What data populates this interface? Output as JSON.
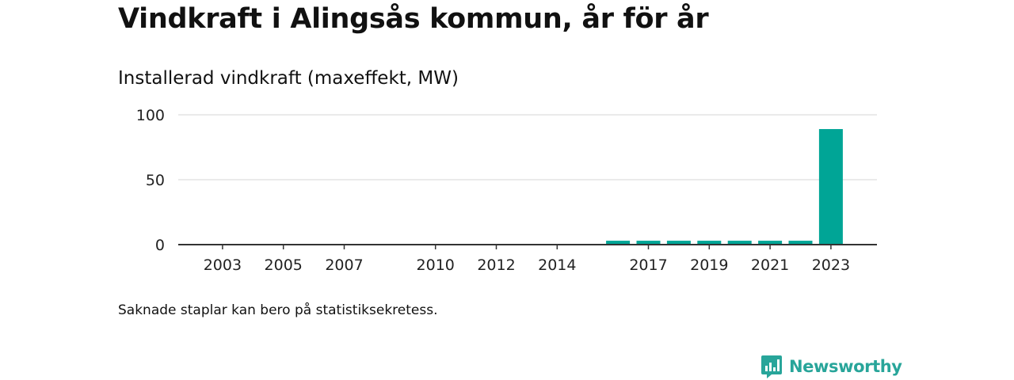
{
  "header": {
    "title": "Vindkraft i Alingsås kommun, år för år",
    "subtitle": "Installerad vindkraft (maxeffekt, MW)"
  },
  "footer": {
    "note": "Saknade staplar kan bero på statistiksekretess.",
    "brand": "Newsworthy"
  },
  "colors": {
    "bar": "#00a596",
    "grid": "#dddddd",
    "axis": "#333333",
    "brand": "#28a59a"
  },
  "chart_data": {
    "type": "bar",
    "title": "Installerad vindkraft (maxeffekt, MW)",
    "xlabel": "",
    "ylabel": "",
    "ylim": [
      0,
      100
    ],
    "yticks": [
      0,
      50,
      100
    ],
    "categories": [
      "2002",
      "2003",
      "2004",
      "2005",
      "2006",
      "2007",
      "2008",
      "2009",
      "2010",
      "2011",
      "2012",
      "2013",
      "2014",
      "2015",
      "2016",
      "2017",
      "2018",
      "2019",
      "2020",
      "2021",
      "2022",
      "2023"
    ],
    "xtick_labels": [
      "2003",
      "2005",
      "2007",
      "2010",
      "2012",
      "2014",
      "2017",
      "2019",
      "2021",
      "2023"
    ],
    "values": [
      0,
      0,
      0,
      0,
      0,
      0,
      0,
      0,
      0,
      0,
      0,
      0,
      0,
      0,
      3,
      3,
      3,
      3,
      3,
      3,
      3,
      89
    ],
    "grid": true,
    "legend": "none"
  }
}
